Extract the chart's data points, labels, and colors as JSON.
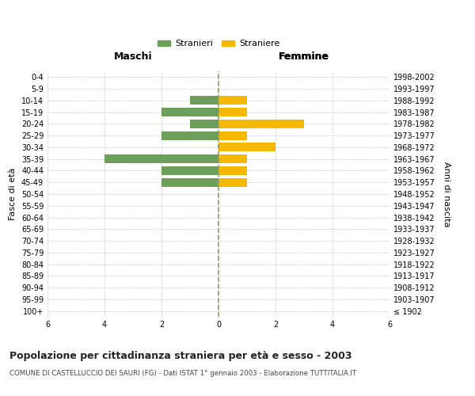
{
  "age_groups": [
    "100+",
    "95-99",
    "90-94",
    "85-89",
    "80-84",
    "75-79",
    "70-74",
    "65-69",
    "60-64",
    "55-59",
    "50-54",
    "45-49",
    "40-44",
    "35-39",
    "30-34",
    "25-29",
    "20-24",
    "15-19",
    "10-14",
    "5-9",
    "0-4"
  ],
  "birth_years": [
    "≤ 1902",
    "1903-1907",
    "1908-1912",
    "1913-1917",
    "1918-1922",
    "1923-1927",
    "1928-1932",
    "1933-1937",
    "1938-1942",
    "1943-1947",
    "1948-1952",
    "1953-1957",
    "1958-1962",
    "1963-1967",
    "1968-1972",
    "1973-1977",
    "1978-1982",
    "1983-1987",
    "1988-1992",
    "1993-1997",
    "1998-2002"
  ],
  "males": [
    0,
    0,
    0,
    0,
    0,
    0,
    0,
    0,
    0,
    0,
    0,
    2,
    2,
    4,
    0,
    2,
    1,
    2,
    1,
    0,
    0
  ],
  "females": [
    0,
    0,
    0,
    0,
    0,
    0,
    0,
    0,
    0,
    0,
    0,
    1,
    1,
    1,
    2,
    1,
    3,
    1,
    1,
    0,
    0
  ],
  "male_color": "#6d9e5a",
  "female_color": "#f5b800",
  "title": "Popolazione per cittadinanza straniera per età e sesso - 2003",
  "subtitle": "COMUNE DI CASTELLUCCIO DEI SAURI (FG) - Dati ISTAT 1° gennaio 2003 - Elaborazione TUTTITALIA.IT",
  "ylabel_left": "Fasce di età",
  "ylabel_right": "Anni di nascita",
  "label_maschi": "Maschi",
  "label_femmine": "Femmine",
  "legend_male": "Stranieri",
  "legend_female": "Straniere",
  "xlim": 6,
  "background_color": "#ffffff",
  "grid_color": "#cccccc",
  "center_line_color": "#999966"
}
